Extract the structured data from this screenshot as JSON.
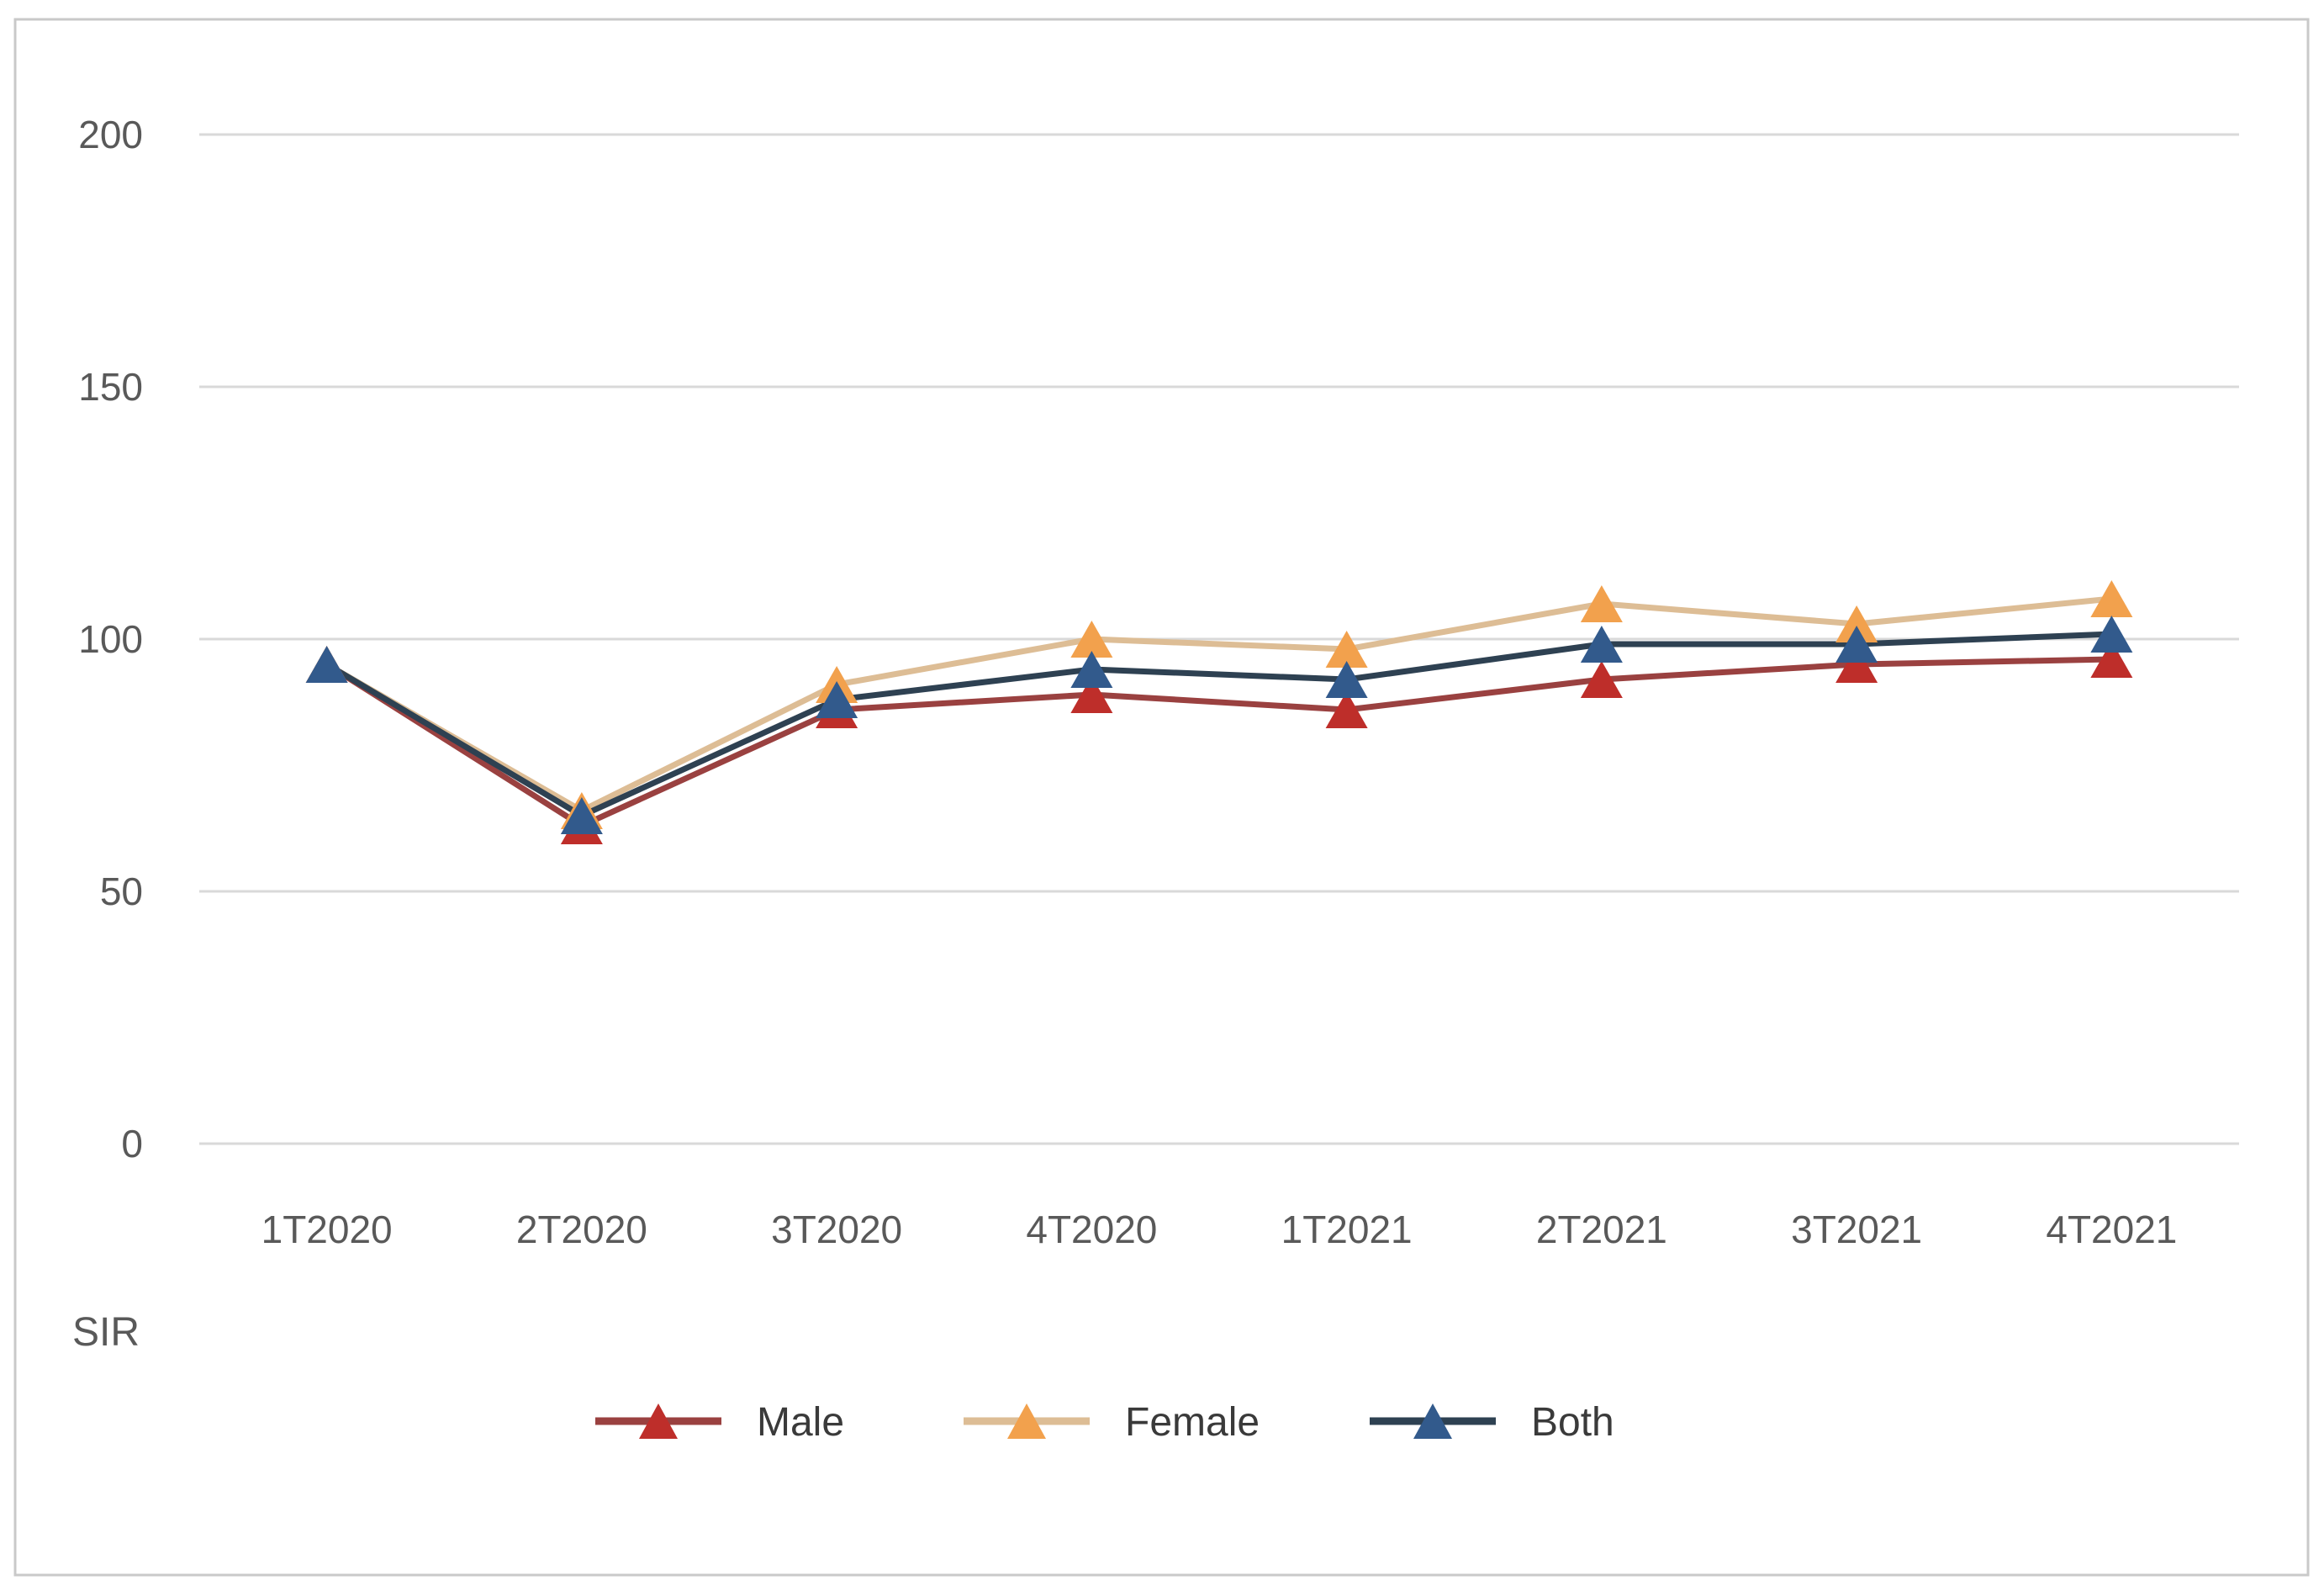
{
  "chart_data": {
    "type": "line",
    "title": "",
    "categories": [
      "1T2020",
      "2T2020",
      "3T2020",
      "4T2020",
      "1T2021",
      "2T2021",
      "3T2021",
      "4T2021"
    ],
    "series": [
      {
        "name": "Male",
        "values": [
          95,
          63,
          86,
          89,
          86,
          92,
          95,
          96
        ],
        "line_color": "#9A4140",
        "marker_color": "#BE2E2A"
      },
      {
        "name": "Female",
        "values": [
          95,
          66,
          91,
          100,
          98,
          107,
          103,
          108
        ],
        "line_color": "#DDBD95",
        "marker_color": "#F2A14D"
      },
      {
        "name": "Both",
        "values": [
          95,
          65,
          88,
          94,
          92,
          99,
          99,
          101
        ],
        "line_color": "#2E4152",
        "marker_color": "#325A8C"
      }
    ],
    "xlabel": "",
    "ylabel": "SIR",
    "yticks": [
      200,
      150,
      100,
      50,
      0
    ],
    "ylim": [
      0,
      200
    ],
    "grid": true,
    "marker": "triangle",
    "legend_position": "bottom"
  },
  "colors": {
    "background": "#ffffff",
    "border": "#c9c9c9",
    "grid": "#d9d9d9",
    "axis_text": "#595959",
    "legend_text": "#3a3a3a"
  }
}
